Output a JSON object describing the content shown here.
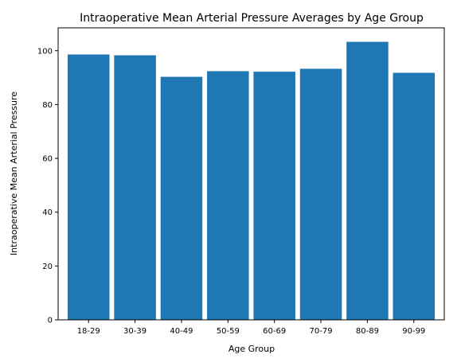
{
  "chart_data": {
    "type": "bar",
    "title": "Intraoperative Mean Arterial Pressure Averages by Age Group",
    "xlabel": "Age Group",
    "ylabel": "Intraoperative Mean Arterial Pressure",
    "categories": [
      "18-29",
      "30-39",
      "40-49",
      "50-59",
      "60-69",
      "70-79",
      "80-89",
      "90-99"
    ],
    "values": [
      98.6,
      98.3,
      90.3,
      92.4,
      92.2,
      93.3,
      103.3,
      91.8
    ],
    "ylim": [
      0,
      108.5
    ],
    "yticks": [
      0,
      20,
      40,
      60,
      80,
      100
    ],
    "bar_color": "#1f77b4",
    "grid": false,
    "legend": "none"
  }
}
